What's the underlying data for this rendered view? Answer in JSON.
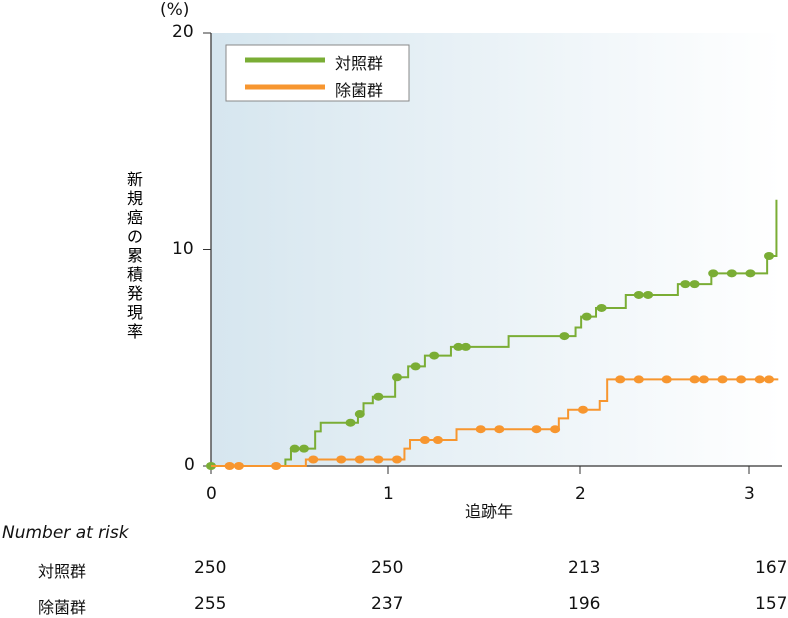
{
  "chart_data": {
    "type": "line",
    "title": "",
    "xlabel": "追跡年",
    "ylabel": "新規癌の累積発現率",
    "yunit": "(%)",
    "xlim": [
      0,
      3.05
    ],
    "ylim": [
      0,
      20
    ],
    "xticks": [
      "0",
      "1",
      "2",
      "3"
    ],
    "yticks": [
      "0",
      "10",
      "20"
    ],
    "legend_position": "top-left",
    "series": [
      {
        "name": "対照群",
        "color": "#7aad35",
        "steps": [
          [
            0,
            0
          ],
          [
            0.4,
            0.3
          ],
          [
            0.43,
            0.8
          ],
          [
            0.56,
            1.6
          ],
          [
            0.59,
            2.0
          ],
          [
            0.79,
            2.4
          ],
          [
            0.82,
            2.9
          ],
          [
            0.87,
            3.2
          ],
          [
            0.99,
            4.1
          ],
          [
            1.06,
            4.6
          ],
          [
            1.15,
            5.1
          ],
          [
            1.29,
            5.5
          ],
          [
            1.6,
            6.0
          ],
          [
            1.96,
            6.4
          ],
          [
            1.99,
            6.9
          ],
          [
            2.07,
            7.3
          ],
          [
            2.23,
            7.9
          ],
          [
            2.51,
            8.4
          ],
          [
            2.69,
            8.9
          ],
          [
            2.99,
            9.7
          ],
          [
            3.04,
            12.3
          ]
        ],
        "censored": [
          0,
          0.45,
          0.5,
          0.75,
          0.8,
          0.9,
          1.0,
          1.1,
          1.2,
          1.33,
          1.37,
          1.9,
          2.02,
          2.1,
          2.3,
          2.35,
          2.55,
          2.6,
          2.7,
          2.8,
          2.9,
          3.0
        ]
      },
      {
        "name": "除菌群",
        "color": "#f7962f",
        "steps": [
          [
            0,
            0
          ],
          [
            0.51,
            0.3
          ],
          [
            1.04,
            0.8
          ],
          [
            1.07,
            1.2
          ],
          [
            1.32,
            1.7
          ],
          [
            1.87,
            2.2
          ],
          [
            1.92,
            2.6
          ],
          [
            2.09,
            3.0
          ],
          [
            2.13,
            4.0
          ],
          [
            3.05,
            4.0
          ]
        ],
        "censored": [
          0.1,
          0.15,
          0.35,
          0.55,
          0.7,
          0.8,
          0.9,
          1.0,
          1.15,
          1.22,
          1.45,
          1.55,
          1.75,
          1.85,
          2.0,
          2.2,
          2.3,
          2.45,
          2.6,
          2.65,
          2.75,
          2.85,
          2.95,
          3.0
        ]
      }
    ],
    "risk_table": {
      "title": "Number at risk",
      "rows": [
        {
          "label": "対照群",
          "values": [
            "250",
            "250",
            "213",
            "167"
          ]
        },
        {
          "label": "除菌群",
          "values": [
            "255",
            "237",
            "196",
            "157"
          ]
        }
      ]
    }
  }
}
